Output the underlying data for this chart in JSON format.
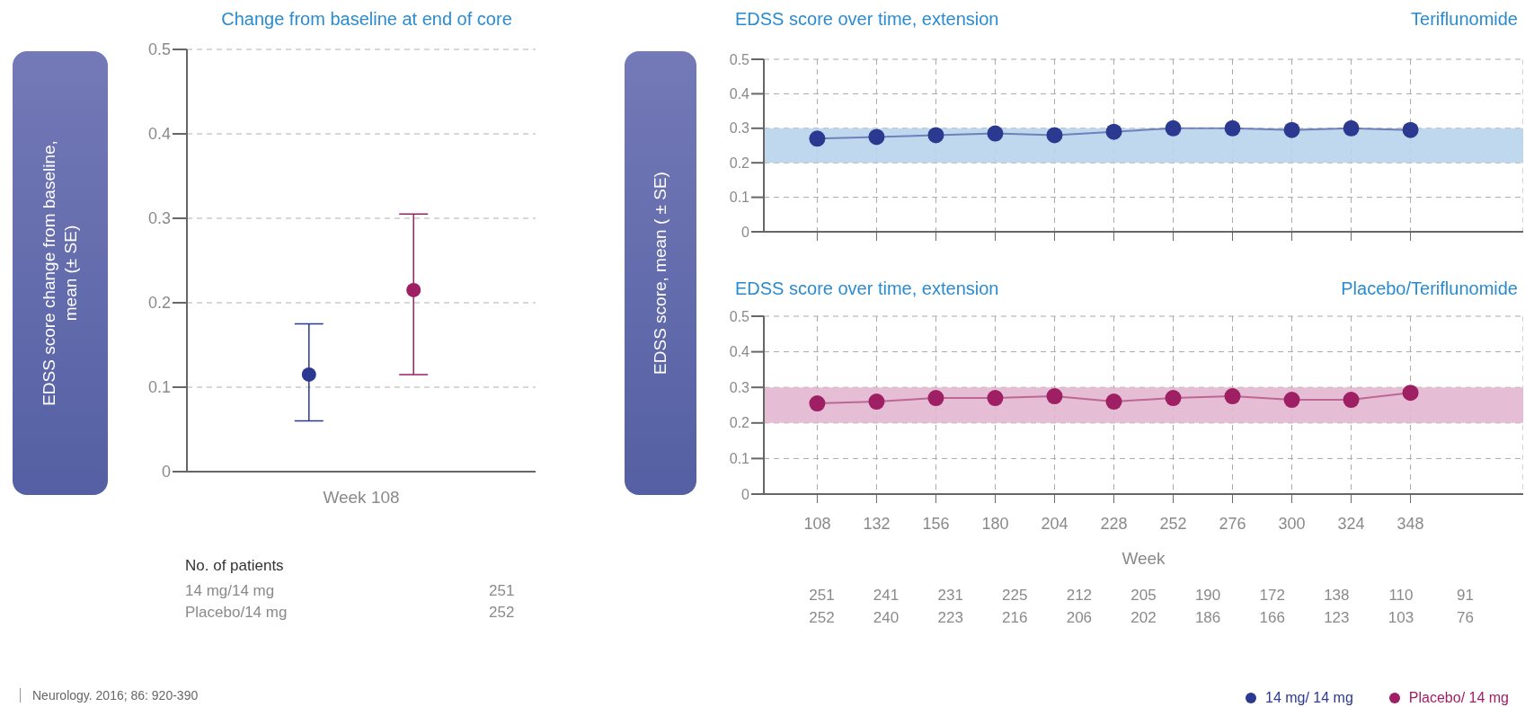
{
  "chart_data": [
    {
      "type": "scatter",
      "title": "Change from baseline at end of core",
      "ylabel": "EDSS score change from baseline, mean (± SE)",
      "categories": [
        "Week 108"
      ],
      "ylim": [
        0,
        0.5
      ],
      "yticks": [
        0,
        0.1,
        0.2,
        0.3,
        0.4,
        0.5
      ],
      "grid": "y",
      "marker": "circle",
      "legend": "bottom right",
      "series": [
        {
          "name": "14 mg/ 14 mg",
          "color": "#2b3990",
          "values": [
            0.115
          ],
          "errors": [
            [
              0.06,
              0.175
            ]
          ]
        },
        {
          "name": "Placebo/ 14 mg",
          "color": "#9e1f63",
          "values": [
            0.215
          ],
          "errors": [
            [
              0.115,
              0.305
            ]
          ]
        }
      ],
      "annotations": [
        "No. of patients",
        "14 mg/14 mg",
        "Placebo/14 mg",
        "251",
        "252",
        "Neurology. 2016; 86: 920-390"
      ]
    },
    {
      "type": "line",
      "title": "EDSS score over time, extension",
      "subtitle": "Teriflunomide",
      "ylabel": "EDSS score, mean ( ± SE)",
      "categories": [
        "108",
        "132",
        "156",
        "180",
        "204",
        "228",
        "252",
        "276",
        "300",
        "324",
        "348"
      ],
      "ylim": [
        0,
        0.5
      ],
      "yticks": [
        0,
        0.1,
        0.2,
        0.3,
        0.4,
        0.5
      ],
      "grid": true,
      "marker": "circle",
      "tick_labels": "y",
      "bands": [
        {
          "axis": "y",
          "from": 0.2,
          "to": 0.3,
          "color": "#b9d4ec"
        }
      ],
      "series": [
        {
          "color": "#2b3990",
          "values": [
            0.27,
            0.275,
            0.28,
            0.285,
            0.28,
            0.29,
            0.3,
            0.3,
            0.295,
            0.3,
            0.295
          ]
        }
      ]
    },
    {
      "type": "line",
      "title": "EDSS score over time, extension",
      "subtitle": "Placebo/Teriflunomide",
      "xlabel": "Week",
      "categories": [
        "108",
        "132",
        "156",
        "180",
        "204",
        "228",
        "252",
        "276",
        "300",
        "324",
        "348"
      ],
      "ylim": [
        0,
        0.5
      ],
      "yticks": [
        0,
        0.1,
        0.2,
        0.3,
        0.4,
        0.5
      ],
      "grid": true,
      "marker": "circle",
      "bands": [
        {
          "axis": "y",
          "from": 0.2,
          "to": 0.3,
          "color": "#e2b6cf"
        }
      ],
      "series": [
        {
          "color": "#9e1f63",
          "values": [
            0.255,
            0.26,
            0.27,
            0.27,
            0.275,
            0.26,
            0.27,
            0.275,
            0.265,
            0.265,
            0.285
          ]
        }
      ],
      "annotations": [
        "251 241 231 225 212 205 190 172 138 110 91",
        "252 240 223 216 206 202 186 166 123 103 76"
      ]
    }
  ]
}
